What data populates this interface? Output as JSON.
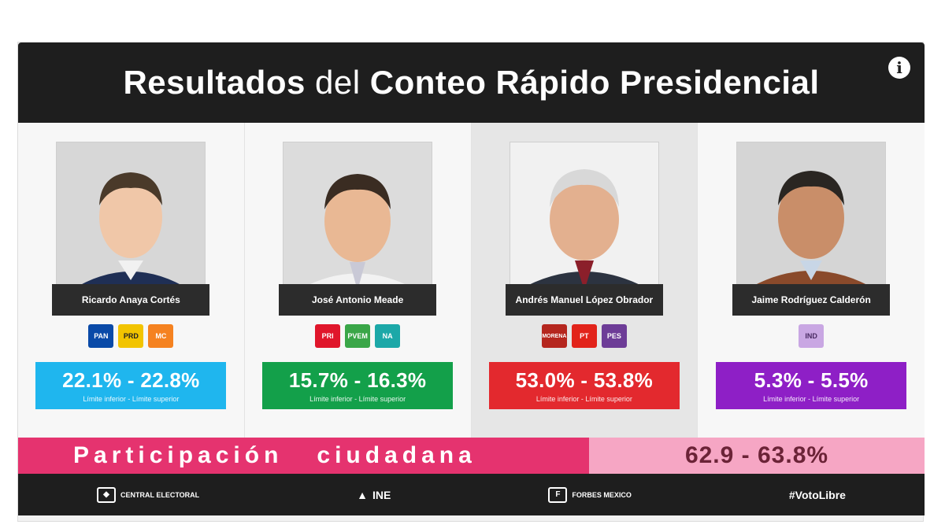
{
  "header": {
    "title_part1": "Resultados",
    "title_part2": "del",
    "title_part3": "Conteo Rápido Presidencial",
    "info_icon": "info-icon"
  },
  "candidates": [
    {
      "name": "Ricardo Anaya Cortés",
      "range": "22.1% - 22.8%",
      "limits": "Límite inferior - Límite superior",
      "color": "#1fb6ee",
      "parties": [
        {
          "label": "PAN",
          "color": "#0a4aa8"
        },
        {
          "label": "PRD",
          "color": "#f2c400"
        },
        {
          "label": "MC",
          "color": "#f58220"
        }
      ]
    },
    {
      "name": "José Antonio Meade",
      "range": "15.7% - 16.3%",
      "limits": "Límite inferior - Límite superior",
      "color": "#13a04a",
      "parties": [
        {
          "label": "PRI",
          "color": "#e0162b"
        },
        {
          "label": "PVEM",
          "color": "#3aa648"
        },
        {
          "label": "NA",
          "color": "#1ca8a8"
        }
      ]
    },
    {
      "name": "Andrés Manuel López Obrador",
      "range": "53.0% - 53.8%",
      "limits": "Límite inferior - Límite superior",
      "color": "#e3292e",
      "parties": [
        {
          "label": "MORENA",
          "color": "#b5261e"
        },
        {
          "label": "PT",
          "color": "#e2231a"
        },
        {
          "label": "PES",
          "color": "#6d3c97"
        }
      ]
    },
    {
      "name": "Jaime Rodríguez Calderón",
      "range": "5.3% - 5.5%",
      "limits": "Límite inferior - Límite superior",
      "color": "#8e1fc6",
      "parties": [
        {
          "label": "IND",
          "color": "#c9a7e3"
        }
      ]
    }
  ],
  "participation": {
    "label": "Participación   ciudadana",
    "value": "62.9 - 63.8%"
  },
  "footer": {
    "item1": "CENTRAL ELECTORAL",
    "item2": "INE",
    "item3": "FORBES MEXICO",
    "item4": "#VotoLibre"
  }
}
